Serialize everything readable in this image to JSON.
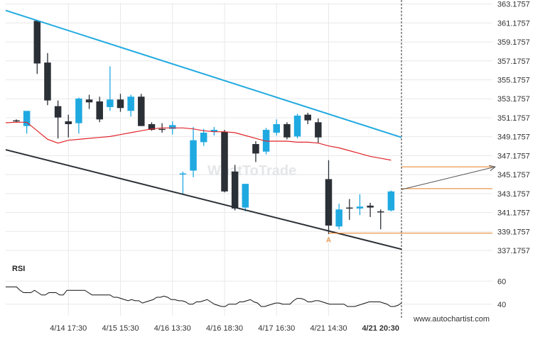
{
  "chart_data": {
    "type": "candlestick",
    "y_ticks": [
      "363.1757",
      "361.1757",
      "359.1757",
      "357.1757",
      "355.1757",
      "353.1757",
      "351.1757",
      "349.1757",
      "347.1757",
      "345.1757",
      "343.1757",
      "341.1757",
      "339.1757",
      "337.1757"
    ],
    "ylim": [
      336.5,
      363.3
    ],
    "x_tick_labels": [
      "4/14 17:30",
      "4/15 15:30",
      "4/16 13:30",
      "4/16 18:30",
      "4/17 16:30",
      "4/21 14:30",
      "4/21 20:30"
    ],
    "x_tick_indices": [
      5,
      10,
      15,
      20,
      25,
      30,
      35
    ],
    "candles": [
      {
        "o": 350.9,
        "h": 351.0,
        "l": 350.7,
        "c": 350.8,
        "color": "dark"
      },
      {
        "o": 350.3,
        "h": 351.8,
        "l": 349.5,
        "c": 351.9,
        "color": "blue"
      },
      {
        "o": 361.4,
        "h": 361.5,
        "l": 355.8,
        "c": 356.9,
        "color": "dark"
      },
      {
        "o": 357.0,
        "h": 358.0,
        "l": 352.5,
        "c": 353.0,
        "color": "dark"
      },
      {
        "o": 352.4,
        "h": 353.0,
        "l": 349.0,
        "c": 351.2,
        "color": "dark"
      },
      {
        "o": 350.8,
        "h": 351.5,
        "l": 349.1,
        "c": 350.5,
        "color": "dark"
      },
      {
        "o": 350.6,
        "h": 353.3,
        "l": 349.5,
        "c": 353.2,
        "color": "blue"
      },
      {
        "o": 353.1,
        "h": 353.6,
        "l": 352.1,
        "c": 352.8,
        "color": "dark"
      },
      {
        "o": 352.9,
        "h": 353.4,
        "l": 350.7,
        "c": 351.0,
        "color": "dark"
      },
      {
        "o": 352.3,
        "h": 356.6,
        "l": 351.9,
        "c": 353.1,
        "color": "blue"
      },
      {
        "o": 353.1,
        "h": 353.7,
        "l": 351.8,
        "c": 352.2,
        "color": "dark"
      },
      {
        "o": 351.9,
        "h": 353.6,
        "l": 351.3,
        "c": 353.4,
        "color": "blue"
      },
      {
        "o": 353.4,
        "h": 353.7,
        "l": 350.3,
        "c": 350.3,
        "color": "dark"
      },
      {
        "o": 350.5,
        "h": 350.7,
        "l": 349.8,
        "c": 349.9,
        "color": "dark"
      },
      {
        "o": 350.0,
        "h": 350.6,
        "l": 349.6,
        "c": 350.0,
        "color": "dark"
      },
      {
        "o": 350.0,
        "h": 350.8,
        "l": 349.4,
        "c": 350.4,
        "color": "blue"
      },
      {
        "o": 345.2,
        "h": 345.5,
        "l": 343.1,
        "c": 345.3,
        "color": "blue"
      },
      {
        "o": 345.6,
        "h": 350.2,
        "l": 344.9,
        "c": 348.8,
        "color": "blue"
      },
      {
        "o": 348.6,
        "h": 350.0,
        "l": 348.2,
        "c": 349.6,
        "color": "blue"
      },
      {
        "o": 349.9,
        "h": 350.2,
        "l": 349.3,
        "c": 349.7,
        "color": "blue"
      },
      {
        "o": 349.7,
        "h": 349.9,
        "l": 343.3,
        "c": 343.4,
        "color": "dark"
      },
      {
        "o": 345.5,
        "h": 346.2,
        "l": 341.4,
        "c": 341.6,
        "color": "dark"
      },
      {
        "o": 341.7,
        "h": 344.1,
        "l": 341.3,
        "c": 344.2,
        "color": "blue"
      },
      {
        "o": 347.4,
        "h": 348.7,
        "l": 346.5,
        "c": 348.4,
        "color": "dark"
      },
      {
        "o": 347.6,
        "h": 350.1,
        "l": 347.3,
        "c": 349.9,
        "color": "blue"
      },
      {
        "o": 349.6,
        "h": 351.0,
        "l": 349.3,
        "c": 350.5,
        "color": "blue"
      },
      {
        "o": 350.5,
        "h": 350.7,
        "l": 348.9,
        "c": 349.1,
        "color": "dark"
      },
      {
        "o": 349.2,
        "h": 351.6,
        "l": 349.0,
        "c": 351.4,
        "color": "blue"
      },
      {
        "o": 351.5,
        "h": 351.7,
        "l": 350.5,
        "c": 350.9,
        "color": "dark"
      },
      {
        "o": 350.7,
        "h": 351.1,
        "l": 348.5,
        "c": 349.1,
        "color": "dark"
      },
      {
        "o": 344.7,
        "h": 346.7,
        "l": 338.9,
        "c": 339.8,
        "color": "dark"
      },
      {
        "o": 339.7,
        "h": 342.1,
        "l": 339.4,
        "c": 341.5,
        "color": "blue"
      },
      {
        "o": 341.6,
        "h": 342.6,
        "l": 340.4,
        "c": 341.7,
        "color": "dark"
      },
      {
        "o": 341.6,
        "h": 343.1,
        "l": 340.9,
        "c": 341.8,
        "color": "blue"
      },
      {
        "o": 341.9,
        "h": 342.2,
        "l": 340.7,
        "c": 341.7,
        "color": "dark"
      },
      {
        "o": 341.3,
        "h": 341.5,
        "l": 339.4,
        "c": 341.2,
        "color": "dark"
      },
      {
        "o": 341.4,
        "h": 343.5,
        "l": 341.3,
        "c": 343.4,
        "color": "blue"
      }
    ],
    "ma": [
      350.7,
      350.7,
      349.8,
      348.9,
      348.5,
      348.8,
      348.9,
      349.0,
      349.1,
      349.2,
      349.4,
      349.6,
      349.8,
      350.0,
      350.1,
      350.1,
      350.1,
      350.0,
      349.8,
      349.7,
      349.7,
      349.6,
      349.3,
      349.0,
      348.7,
      348.7,
      348.7,
      348.6,
      348.6,
      348.5,
      348.2,
      348.0,
      347.7,
      347.4,
      347.1,
      346.9,
      346.7
    ],
    "upper_trendline": [
      [
        0,
        362.5
      ],
      [
        37,
        349.1
      ]
    ],
    "lower_trendline": [
      [
        0,
        347.8
      ],
      [
        37,
        337.3
      ]
    ],
    "levels": [
      {
        "y": 346.0,
        "from": 37
      },
      {
        "y": 343.7,
        "from": 37
      },
      {
        "y": 339.0,
        "from": 30
      }
    ],
    "projection": [
      [
        37,
        343.6
      ],
      [
        46,
        346.0
      ]
    ],
    "current_time_index": 37,
    "pattern_point": {
      "index": 30,
      "label": "A"
    },
    "rsi": {
      "label": "RSI",
      "ticks": [
        60,
        40
      ],
      "ylim": [
        30,
        70
      ],
      "values": [
        55,
        55,
        55,
        55,
        52,
        50,
        50,
        50,
        52,
        50,
        48,
        48,
        50,
        50,
        50,
        48,
        48,
        52,
        52,
        52,
        52,
        52,
        52,
        50,
        48,
        48,
        48,
        48,
        48,
        48,
        46,
        46,
        45,
        44,
        43,
        44,
        43,
        43,
        41,
        42,
        43,
        44,
        46,
        46,
        47,
        46,
        44,
        44,
        43,
        43,
        42,
        40,
        40,
        42,
        42,
        43,
        44,
        42,
        40,
        39,
        38,
        38,
        40,
        40,
        40,
        42,
        42,
        43,
        44,
        42,
        41,
        38,
        38,
        39,
        40,
        41,
        41,
        40,
        40,
        40,
        43,
        45,
        45,
        44,
        42,
        42,
        43,
        43,
        42,
        41,
        40,
        40,
        40,
        40,
        40,
        38,
        38,
        38,
        39,
        40,
        41,
        42,
        42,
        42,
        42,
        41,
        40,
        38,
        38,
        39,
        41
      ]
    }
  },
  "watermark": "WhatToTrade",
  "footer_text": "www.autochartist.com",
  "colors": {
    "blue_candle": "#1fa9e1",
    "dark_candle": "#2b2f36",
    "ma_line": "#e0252b",
    "upper_line": "#21aae0",
    "lower_line": "#2b2f36",
    "levels": "#e67e22",
    "grid": "#e8e8e8"
  }
}
